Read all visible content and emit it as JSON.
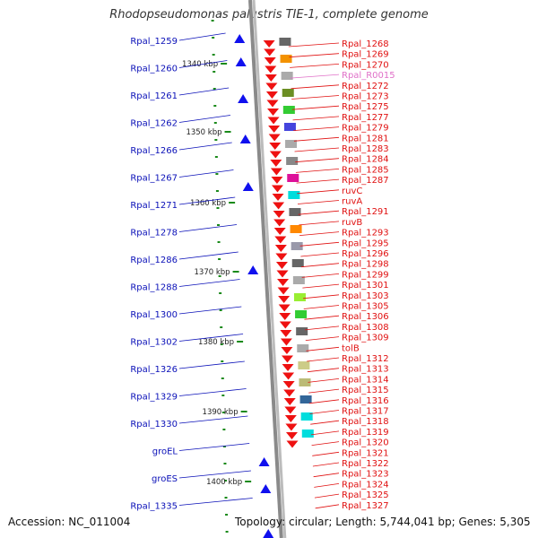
{
  "title": "Rhodopseudomonas palustris TIE-1, complete genome",
  "footer": {
    "accession": "Accession: NC_011004",
    "topology": "Topology: circular; Length: 5,744,041 bp; Genes: 5,305"
  },
  "colors": {
    "left_label": "#0a10b8",
    "right_label": "#e01010",
    "rna_label": "#e070c8",
    "backbone": "#8a8a8a",
    "tick": "#1a8a1a"
  },
  "scale_ticks": [
    "1340 kbp",
    "1350 kbp",
    "1360 kbp",
    "1370 kbp",
    "1380 kbp",
    "1390 kbp",
    "1400 kbp"
  ],
  "left_labels": [
    "Rpal_1259",
    "Rpal_1260",
    "Rpal_1261",
    "Rpal_1262",
    "Rpal_1266",
    "Rpal_1267",
    "Rpal_1271",
    "Rpal_1278",
    "Rpal_1286",
    "Rpal_1288",
    "Rpal_1300",
    "Rpal_1302",
    "Rpal_1326",
    "Rpal_1329",
    "Rpal_1330",
    "groEL",
    "groES",
    "Rpal_1335"
  ],
  "right_labels": [
    "Rpal_1268",
    "Rpal_1269",
    "Rpal_1270",
    "Rpal_R0015",
    "Rpal_1272",
    "Rpal_1273",
    "Rpal_1275",
    "Rpal_1277",
    "Rpal_1279",
    "Rpal_1281",
    "Rpal_1283",
    "Rpal_1284",
    "Rpal_1285",
    "Rpal_1287",
    "ruvC",
    "ruvA",
    "Rpal_1291",
    "ruvB",
    "Rpal_1293",
    "Rpal_1295",
    "Rpal_1296",
    "Rpal_1298",
    "Rpal_1299",
    "Rpal_1301",
    "Rpal_1303",
    "Rpal_1305",
    "Rpal_1306",
    "Rpal_1308",
    "Rpal_1309",
    "tolB",
    "Rpal_1312",
    "Rpal_1313",
    "Rpal_1314",
    "Rpal_1315",
    "Rpal_1316",
    "Rpal_1317",
    "Rpal_1318",
    "Rpal_1319",
    "Rpal_1320",
    "Rpal_1321",
    "Rpal_1322",
    "Rpal_1323",
    "Rpal_1324",
    "Rpal_1325",
    "Rpal_1327"
  ],
  "rna_label": "Rpal_R0015"
}
